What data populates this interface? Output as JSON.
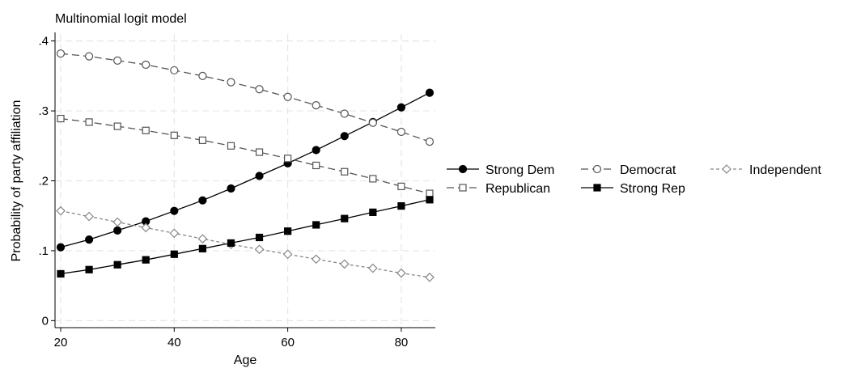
{
  "chart_data": {
    "type": "line",
    "title": "Multinomial logit model",
    "xlabel": "Age",
    "ylabel": "Probability of party affiliation",
    "xlim": [
      19,
      86
    ],
    "ylim": [
      -0.01,
      0.41
    ],
    "xticks": [
      20,
      40,
      60,
      80
    ],
    "yticks": [
      0,
      0.1,
      0.2,
      0.3,
      0.4
    ],
    "xtick_labels": [
      "20",
      "40",
      "60",
      "80"
    ],
    "ytick_labels": [
      "0",
      ".1",
      ".2",
      ".3",
      ".4"
    ],
    "grid": true,
    "legend_position": "right",
    "x": [
      20,
      25,
      30,
      35,
      40,
      45,
      50,
      55,
      60,
      65,
      70,
      75,
      80,
      85
    ],
    "series": [
      {
        "name": "Strong Dem",
        "marker": "circle-filled",
        "dash": "solid",
        "color": "#000000",
        "values": [
          0.105,
          0.116,
          0.129,
          0.142,
          0.157,
          0.172,
          0.189,
          0.207,
          0.225,
          0.244,
          0.264,
          0.284,
          0.305,
          0.326
        ]
      },
      {
        "name": "Democrat",
        "marker": "circle-open",
        "dash": "long-dash",
        "color": "#555555",
        "values": [
          0.382,
          0.378,
          0.372,
          0.366,
          0.358,
          0.35,
          0.341,
          0.331,
          0.32,
          0.308,
          0.296,
          0.283,
          0.27,
          0.256
        ]
      },
      {
        "name": "Independent",
        "marker": "diamond-open",
        "dash": "short-dash",
        "color": "#888888",
        "values": [
          0.157,
          0.149,
          0.141,
          0.133,
          0.125,
          0.117,
          0.109,
          0.102,
          0.095,
          0.088,
          0.081,
          0.075,
          0.068,
          0.062
        ]
      },
      {
        "name": "Republican",
        "marker": "square-open",
        "dash": "long-dash",
        "color": "#555555",
        "values": [
          0.289,
          0.284,
          0.278,
          0.272,
          0.265,
          0.258,
          0.25,
          0.241,
          0.232,
          0.222,
          0.213,
          0.203,
          0.192,
          0.182
        ]
      },
      {
        "name": "Strong Rep",
        "marker": "square-filled",
        "dash": "solid",
        "color": "#000000",
        "values": [
          0.067,
          0.073,
          0.08,
          0.087,
          0.095,
          0.103,
          0.111,
          0.119,
          0.128,
          0.137,
          0.146,
          0.155,
          0.164,
          0.173
        ]
      }
    ]
  }
}
